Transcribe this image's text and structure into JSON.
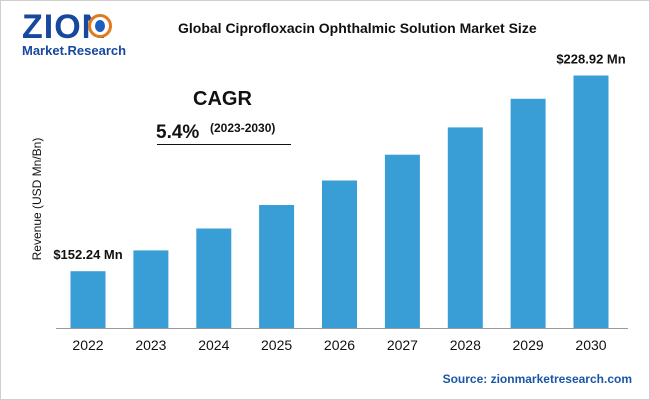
{
  "header": {
    "logo_main": "ZION",
    "logo_sub": "Market.Research",
    "logo_icon": "globe-icon",
    "title": "Global Ciprofloxacin Ophthalmic Solution Market Size"
  },
  "cagr": {
    "label": "CAGR",
    "value": "5.4%",
    "period": "(2023-2030)"
  },
  "source": "Source: zionmarketresearch.com",
  "colors": {
    "bar": "#3a9ed6",
    "brand": "#17479e",
    "accent": "#e07a1f",
    "source_text": "#1a56a6"
  },
  "chart_data": {
    "type": "bar",
    "title": "Global Ciprofloxacin Ophthalmic Solution Market Size",
    "xlabel": "",
    "ylabel": "Revenue (USD Mn/Bn)",
    "categories": [
      "2022",
      "2023",
      "2024",
      "2025",
      "2026",
      "2027",
      "2028",
      "2029",
      "2030"
    ],
    "values": [
      152.24,
      160.4,
      169.0,
      178.2,
      187.8,
      197.9,
      208.6,
      219.8,
      228.92
    ],
    "ylim": [
      130,
      235
    ],
    "grid": false,
    "legend": "none",
    "data_labels": [
      {
        "index": 0,
        "text": "$152.24 Mn"
      },
      {
        "index": 8,
        "text": "$228.92 Mn"
      }
    ]
  }
}
